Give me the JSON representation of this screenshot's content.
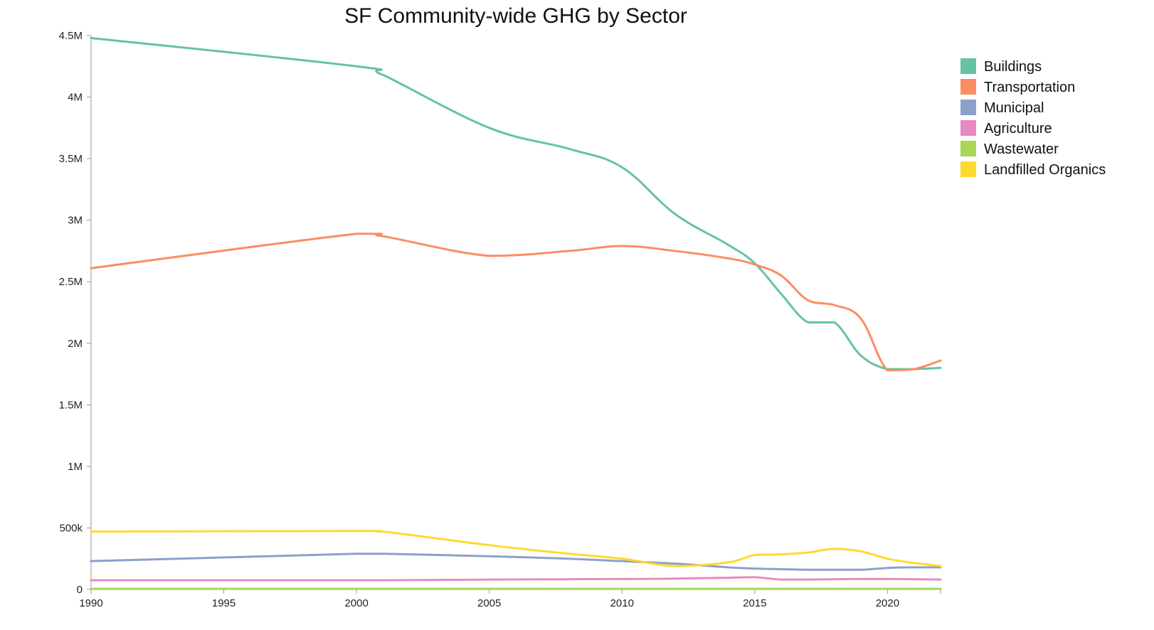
{
  "chart_data": {
    "type": "line",
    "title": "SF Community-wide GHG by Sector",
    "xlabel": "",
    "ylabel": "",
    "xlim": [
      1990,
      2022
    ],
    "ylim": [
      0,
      4500000
    ],
    "x_ticks": [
      1990,
      1995,
      2000,
      2005,
      2010,
      2015,
      2020
    ],
    "x_tick_labels": [
      "1990",
      "1995",
      "2000",
      "2005",
      "2010",
      "2015",
      "2020"
    ],
    "y_ticks": [
      0,
      500000,
      1000000,
      1500000,
      2000000,
      2500000,
      3000000,
      3500000,
      4000000,
      4500000
    ],
    "y_tick_labels": [
      "0",
      "500k",
      "1M",
      "1.5M",
      "2M",
      "2.5M",
      "3M",
      "3.5M",
      "4M",
      "4.5M"
    ],
    "grid": false,
    "legend_position": "top-right",
    "x": [
      1990,
      2000,
      2001,
      2005,
      2008,
      2010,
      2012,
      2014,
      2015,
      2016,
      2017,
      2018,
      2019,
      2020,
      2021,
      2022
    ],
    "series": [
      {
        "name": "Buildings",
        "color": "#66c2a5",
        "values": [
          4480000,
          4250000,
          4180000,
          3750000,
          3580000,
          3430000,
          3050000,
          2800000,
          2650000,
          2400000,
          2170000,
          2170000,
          1900000,
          1790000,
          1790000,
          1800000
        ]
      },
      {
        "name": "Transportation",
        "color": "#fc8d62",
        "values": [
          2610000,
          2890000,
          2870000,
          2710000,
          2750000,
          2790000,
          2750000,
          2690000,
          2640000,
          2550000,
          2350000,
          2310000,
          2200000,
          1780000,
          1790000,
          1860000
        ]
      },
      {
        "name": "Municipal",
        "color": "#8da0cb",
        "values": [
          230000,
          290000,
          290000,
          270000,
          250000,
          230000,
          210000,
          180000,
          170000,
          165000,
          160000,
          160000,
          160000,
          175000,
          180000,
          180000
        ]
      },
      {
        "name": "Agriculture",
        "color": "#e78ac3",
        "values": [
          75000,
          75000,
          75000,
          80000,
          83000,
          85000,
          88000,
          95000,
          100000,
          80000,
          80000,
          83000,
          85000,
          85000,
          83000,
          80000
        ]
      },
      {
        "name": "Wastewater",
        "color": "#a6d854",
        "values": [
          5000,
          5000,
          5000,
          5000,
          5000,
          5000,
          5000,
          5000,
          5000,
          5000,
          5000,
          5000,
          5000,
          5000,
          5000,
          5000
        ]
      },
      {
        "name": "Landfilled Organics",
        "color": "#ffd92f",
        "values": [
          470000,
          475000,
          470000,
          360000,
          290000,
          250000,
          190000,
          220000,
          280000,
          285000,
          300000,
          330000,
          310000,
          250000,
          215000,
          190000
        ]
      }
    ]
  }
}
